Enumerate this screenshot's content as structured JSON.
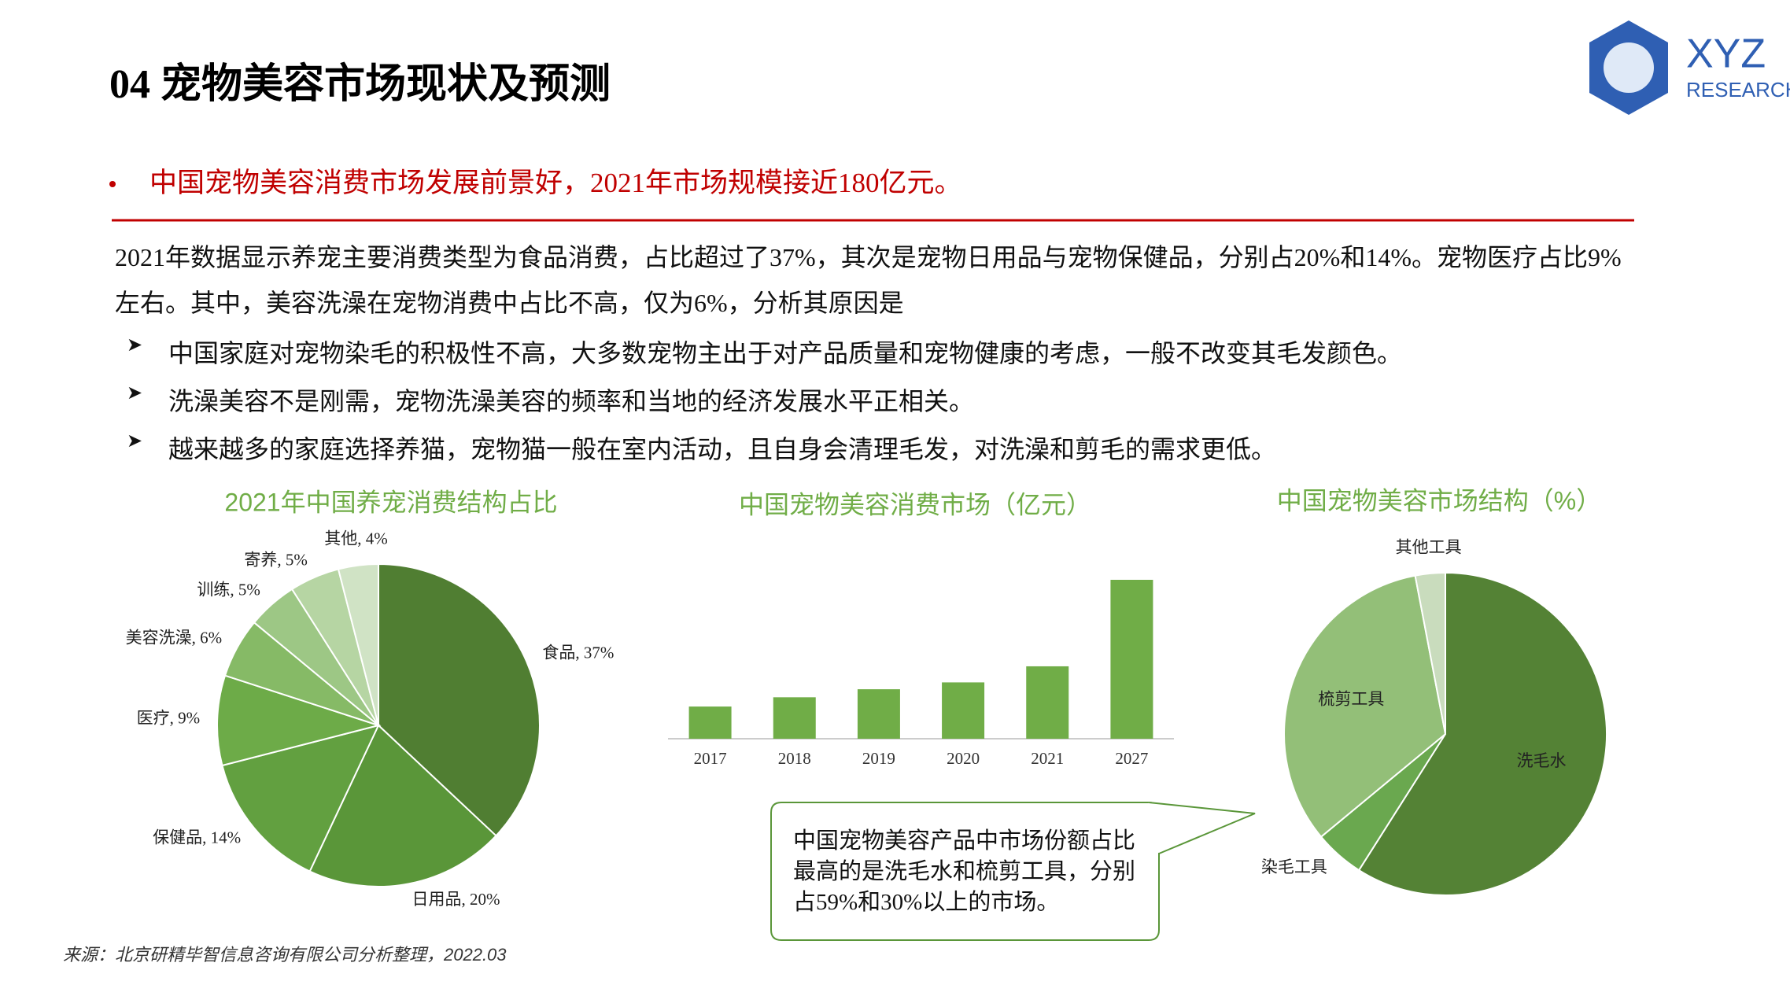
{
  "header": {
    "title": "04 宠物美容市场现状及预测",
    "logo_main": "XYZ",
    "logo_sub": "RESEARCH"
  },
  "headline": "中国宠物美容消费市场发展前景好，2021年市场规模接近180亿元。",
  "paragraph": "2021年数据显示养宠主要消费类型为食品消费，占比超过了37%，其次是宠物日用品与宠物保健品，分别占20%和14%。宠物医疗占比9%左右。其中，美容洗澡在宠物消费中占比不高，仅为6%，分析其原因是",
  "bullets": [
    "中国家庭对宠物染毛的积极性不高，大多数宠物主出于对产品质量和宠物健康的考虑，一般不改变其毛发颜色。",
    "洗澡美容不是刚需，宠物洗澡美容的频率和当地的经济发展水平正相关。",
    "越来越多的家庭选择养猫，宠物猫一般在室内活动，且自身会清理毛发，对洗澡和剪毛的需求更低。"
  ],
  "chart_data": [
    {
      "type": "pie",
      "title": "2021年中国养宠消费结构占比",
      "labels": [
        "食品, 37%",
        "日用品, 20%",
        "保健品, 14%",
        "医疗, 9%",
        "美容洗澡, 6%",
        "训练, 5%",
        "寄养, 5%",
        "其他, 4%"
      ],
      "values": [
        37,
        20,
        14,
        9,
        6,
        5,
        5,
        4
      ],
      "colors": [
        "#507e32",
        "#5a9639",
        "#62a040",
        "#6dab48",
        "#86ba66",
        "#9dc785",
        "#b6d5a3",
        "#d0e3c5"
      ]
    },
    {
      "type": "bar",
      "title": "中国宠物美容消费市场（亿元）",
      "categories": [
        "2017",
        "2018",
        "2019",
        "2020",
        "2021",
        "2027"
      ],
      "values": [
        80,
        103,
        123,
        140,
        180,
        395
      ],
      "color": "#70ad47"
    },
    {
      "type": "pie",
      "title": "中国宠物美容市场结构（%）",
      "categories": [
        "洗毛水",
        "染毛工具",
        "梳剪工具",
        "其他工具"
      ],
      "values": [
        59,
        5,
        33,
        3
      ],
      "colors": [
        "#548235",
        "#6aa84f",
        "#93bf78",
        "#c9dcbd"
      ]
    }
  ],
  "callout": "中国宠物美容产品中市场份额占比最高的是洗毛水和梳剪工具，分别占59%和30%以上的市场。",
  "source": "来源：北京研精毕智信息咨询有限公司分析整理，2022.03"
}
